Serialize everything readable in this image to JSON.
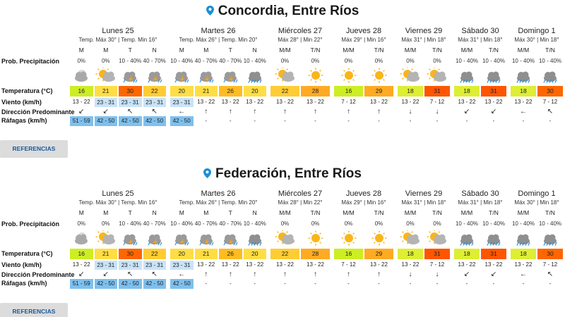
{
  "colors": {
    "t16": "#ccee22",
    "t18": "#ddee33",
    "t20": "#ffdd44",
    "t21": "#ffdd44",
    "t22": "#ffcc33",
    "t26": "#ffbb22",
    "t28": "#ffaa22",
    "t29": "#ffaa22",
    "t30": "#ff6600",
    "t31": "#ff5500",
    "wind_blue": "#c9e3f7",
    "gust_blue": "#7ec0ee",
    "pin": "#1a8fd6",
    "ref_text": "#1a5a9c"
  },
  "row_labels": {
    "precip": "Prob. Precipitación",
    "temp": "Temperatura (°C)",
    "wind": "Viento (km/h)",
    "dir": "Dirección Predominante",
    "gust": "Ráfagas (km/h)"
  },
  "ref_label": "REFERENCIAS",
  "cities": [
    {
      "name": "Concordia, Entre Ríos",
      "days": [
        {
          "name": "Lunes 25",
          "sub": "Temp. Máx 30° | Temp. Min 16°",
          "cols": [
            {
              "p": "M",
              "pct": "0%",
              "icon": "cloud-moon-icon",
              "t": "16",
              "tc": "t16",
              "w": "13 - 22",
              "wb": false,
              "d": "↙",
              "g": "51 - 59",
              "gb": true
            },
            {
              "p": "M",
              "pct": "0%",
              "icon": "cloud-sun-icon",
              "t": "21",
              "tc": "t21",
              "w": "23 - 31",
              "wb": true,
              "d": "↙",
              "g": "42 - 50",
              "gb": true
            },
            {
              "p": "T",
              "pct": "10 - 40%",
              "icon": "storm-icon",
              "t": "30",
              "tc": "t30",
              "w": "23 - 31",
              "wb": true,
              "d": "↖",
              "g": "42 - 50",
              "gb": true
            },
            {
              "p": "N",
              "pct": "40 - 70%",
              "icon": "storm-icon",
              "t": "22",
              "tc": "t22",
              "w": "23 - 31",
              "wb": true,
              "d": "↖",
              "g": "42 - 50",
              "gb": true
            }
          ]
        },
        {
          "name": "Martes 26",
          "sub": "Temp. Máx 26° | Temp. Min 20°",
          "cols": [
            {
              "p": "M",
              "pct": "10 - 40%",
              "icon": "storm-icon",
              "t": "20",
              "tc": "t20",
              "w": "23 - 31",
              "wb": true,
              "d": "←",
              "g": "42 - 50",
              "gb": true
            },
            {
              "p": "M",
              "pct": "40 - 70%",
              "icon": "storm-icon",
              "t": "21",
              "tc": "t21",
              "w": "13 - 22",
              "wb": false,
              "d": "↑",
              "g": "-",
              "gb": false
            },
            {
              "p": "T",
              "pct": "40 - 70%",
              "icon": "storm-icon",
              "t": "26",
              "tc": "t26",
              "w": "13 - 22",
              "wb": false,
              "d": "↑",
              "g": "-",
              "gb": false
            },
            {
              "p": "N",
              "pct": "10 - 40%",
              "icon": "rain-icon",
              "t": "20",
              "tc": "t20",
              "w": "13 - 22",
              "wb": false,
              "d": "↑",
              "g": "-",
              "gb": false
            }
          ]
        },
        {
          "name": "Miércoles 27",
          "sub": "Máx 28° | Min 22°",
          "cols": [
            {
              "p": "M/M",
              "pct": "0%",
              "icon": "cloud-sun-icon",
              "t": "22",
              "tc": "t22",
              "w": "13 - 22",
              "wb": false,
              "d": "↑",
              "g": "-",
              "gb": false
            },
            {
              "p": "T/N",
              "pct": "0%",
              "icon": "sun-icon",
              "t": "28",
              "tc": "t28",
              "w": "13 - 22",
              "wb": false,
              "d": "↑",
              "g": "-",
              "gb": false
            }
          ]
        },
        {
          "name": "Jueves 28",
          "sub": "Máx 29° | Min 16°",
          "cols": [
            {
              "p": "M/M",
              "pct": "0%",
              "icon": "sun-icon",
              "t": "16",
              "tc": "t16",
              "w": "7 - 12",
              "wb": false,
              "d": "↑",
              "g": "-",
              "gb": false
            },
            {
              "p": "T/N",
              "pct": "0%",
              "icon": "sun-icon",
              "t": "29",
              "tc": "t29",
              "w": "13 - 22",
              "wb": false,
              "d": "↑",
              "g": "-",
              "gb": false
            }
          ]
        },
        {
          "name": "Viernes 29",
          "sub": "Máx 31° | Min 18°",
          "cols": [
            {
              "p": "M/M",
              "pct": "0%",
              "icon": "cloud-sun-icon",
              "t": "18",
              "tc": "t18",
              "w": "13 - 22",
              "wb": false,
              "d": "↓",
              "g": "-",
              "gb": false
            },
            {
              "p": "T/N",
              "pct": "0%",
              "icon": "cloud-sun-icon",
              "t": "31",
              "tc": "t31",
              "w": "7 - 12",
              "wb": false,
              "d": "↓",
              "g": "-",
              "gb": false
            }
          ]
        },
        {
          "name": "Sábado 30",
          "sub": "Máx 31° | Min 18°",
          "cols": [
            {
              "p": "M/M",
              "pct": "10 - 40%",
              "icon": "rain-icon",
              "t": "18",
              "tc": "t18",
              "w": "13 - 22",
              "wb": false,
              "d": "↙",
              "g": "-",
              "gb": false
            },
            {
              "p": "T/N",
              "pct": "10 - 40%",
              "icon": "rain-icon",
              "t": "31",
              "tc": "t31",
              "w": "13 - 22",
              "wb": false,
              "d": "↙",
              "g": "-",
              "gb": false
            }
          ]
        },
        {
          "name": "Domingo 1",
          "sub": "Máx 30° | Min 18°",
          "cols": [
            {
              "p": "M/M",
              "pct": "10 - 40%",
              "icon": "rain-icon",
              "t": "18",
              "tc": "t18",
              "w": "13 - 22",
              "wb": false,
              "d": "←",
              "g": "-",
              "gb": false
            },
            {
              "p": "T/N",
              "pct": "10 - 40%",
              "icon": "rain-icon",
              "t": "30",
              "tc": "t30",
              "w": "7 - 12",
              "wb": false,
              "d": "↖",
              "g": "-",
              "gb": false
            }
          ]
        }
      ]
    },
    {
      "name": "Federación, Entre Ríos",
      "days": [
        {
          "name": "Lunes 25",
          "sub": "Temp. Máx 30° | Temp. Min 16°",
          "cols": [
            {
              "p": "M",
              "pct": "0%",
              "icon": "cloud-moon-icon",
              "t": "16",
              "tc": "t16",
              "w": "13 - 22",
              "wb": false,
              "d": "↙",
              "g": "51 - 59",
              "gb": true
            },
            {
              "p": "M",
              "pct": "0%",
              "icon": "cloud-sun-icon",
              "t": "21",
              "tc": "t21",
              "w": "23 - 31",
              "wb": true,
              "d": "↙",
              "g": "42 - 50",
              "gb": true
            },
            {
              "p": "T",
              "pct": "10 - 40%",
              "icon": "storm-icon",
              "t": "30",
              "tc": "t30",
              "w": "23 - 31",
              "wb": true,
              "d": "↖",
              "g": "42 - 50",
              "gb": true
            },
            {
              "p": "N",
              "pct": "40 - 70%",
              "icon": "storm-icon",
              "t": "22",
              "tc": "t22",
              "w": "23 - 31",
              "wb": true,
              "d": "↖",
              "g": "42 - 50",
              "gb": true
            }
          ]
        },
        {
          "name": "Martes 26",
          "sub": "Temp. Máx 26° | Temp. Min 20°",
          "cols": [
            {
              "p": "M",
              "pct": "10 - 40%",
              "icon": "storm-icon",
              "t": "20",
              "tc": "t20",
              "w": "23 - 31",
              "wb": true,
              "d": "←",
              "g": "42 - 50",
              "gb": true
            },
            {
              "p": "M",
              "pct": "40 - 70%",
              "icon": "storm-icon",
              "t": "21",
              "tc": "t21",
              "w": "13 - 22",
              "wb": false,
              "d": "↑",
              "g": "-",
              "gb": false
            },
            {
              "p": "T",
              "pct": "40 - 70%",
              "icon": "storm-icon",
              "t": "26",
              "tc": "t26",
              "w": "13 - 22",
              "wb": false,
              "d": "↑",
              "g": "-",
              "gb": false
            },
            {
              "p": "N",
              "pct": "10 - 40%",
              "icon": "rain-icon",
              "t": "20",
              "tc": "t20",
              "w": "13 - 22",
              "wb": false,
              "d": "↑",
              "g": "-",
              "gb": false
            }
          ]
        },
        {
          "name": "Miércoles 27",
          "sub": "Máx 28° | Min 22°",
          "cols": [
            {
              "p": "M/M",
              "pct": "0%",
              "icon": "cloud-sun-icon",
              "t": "22",
              "tc": "t22",
              "w": "13 - 22",
              "wb": false,
              "d": "↑",
              "g": "-",
              "gb": false
            },
            {
              "p": "T/N",
              "pct": "0%",
              "icon": "sun-icon",
              "t": "28",
              "tc": "t28",
              "w": "13 - 22",
              "wb": false,
              "d": "↑",
              "g": "-",
              "gb": false
            }
          ]
        },
        {
          "name": "Jueves 28",
          "sub": "Máx 29° | Min 16°",
          "cols": [
            {
              "p": "M/M",
              "pct": "0%",
              "icon": "sun-icon",
              "t": "16",
              "tc": "t16",
              "w": "7 - 12",
              "wb": false,
              "d": "↑",
              "g": "-",
              "gb": false
            },
            {
              "p": "T/N",
              "pct": "0%",
              "icon": "sun-icon",
              "t": "29",
              "tc": "t29",
              "w": "13 - 22",
              "wb": false,
              "d": "↑",
              "g": "-",
              "gb": false
            }
          ]
        },
        {
          "name": "Viernes 29",
          "sub": "Máx 31° | Min 18°",
          "cols": [
            {
              "p": "M/M",
              "pct": "0%",
              "icon": "cloud-sun-icon",
              "t": "18",
              "tc": "t18",
              "w": "13 - 22",
              "wb": false,
              "d": "↓",
              "g": "-",
              "gb": false
            },
            {
              "p": "T/N",
              "pct": "0%",
              "icon": "cloud-sun-icon",
              "t": "31",
              "tc": "t31",
              "w": "7 - 12",
              "wb": false,
              "d": "↓",
              "g": "-",
              "gb": false
            }
          ]
        },
        {
          "name": "Sábado 30",
          "sub": "Máx 31° | Min 18°",
          "cols": [
            {
              "p": "M/M",
              "pct": "10 - 40%",
              "icon": "rain-icon",
              "t": "18",
              "tc": "t18",
              "w": "13 - 22",
              "wb": false,
              "d": "↙",
              "g": "-",
              "gb": false
            },
            {
              "p": "T/N",
              "pct": "10 - 40%",
              "icon": "rain-icon",
              "t": "31",
              "tc": "t31",
              "w": "13 - 22",
              "wb": false,
              "d": "↙",
              "g": "-",
              "gb": false
            }
          ]
        },
        {
          "name": "Domingo 1",
          "sub": "Máx 30° | Min 18°",
          "cols": [
            {
              "p": "M/M",
              "pct": "10 - 40%",
              "icon": "rain-icon",
              "t": "18",
              "tc": "t18",
              "w": "13 - 22",
              "wb": false,
              "d": "←",
              "g": "-",
              "gb": false
            },
            {
              "p": "T/N",
              "pct": "10 - 40%",
              "icon": "rain-icon",
              "t": "30",
              "tc": "t30",
              "w": "7 - 12",
              "wb": false,
              "d": "↖",
              "g": "-",
              "gb": false
            }
          ]
        }
      ]
    }
  ]
}
